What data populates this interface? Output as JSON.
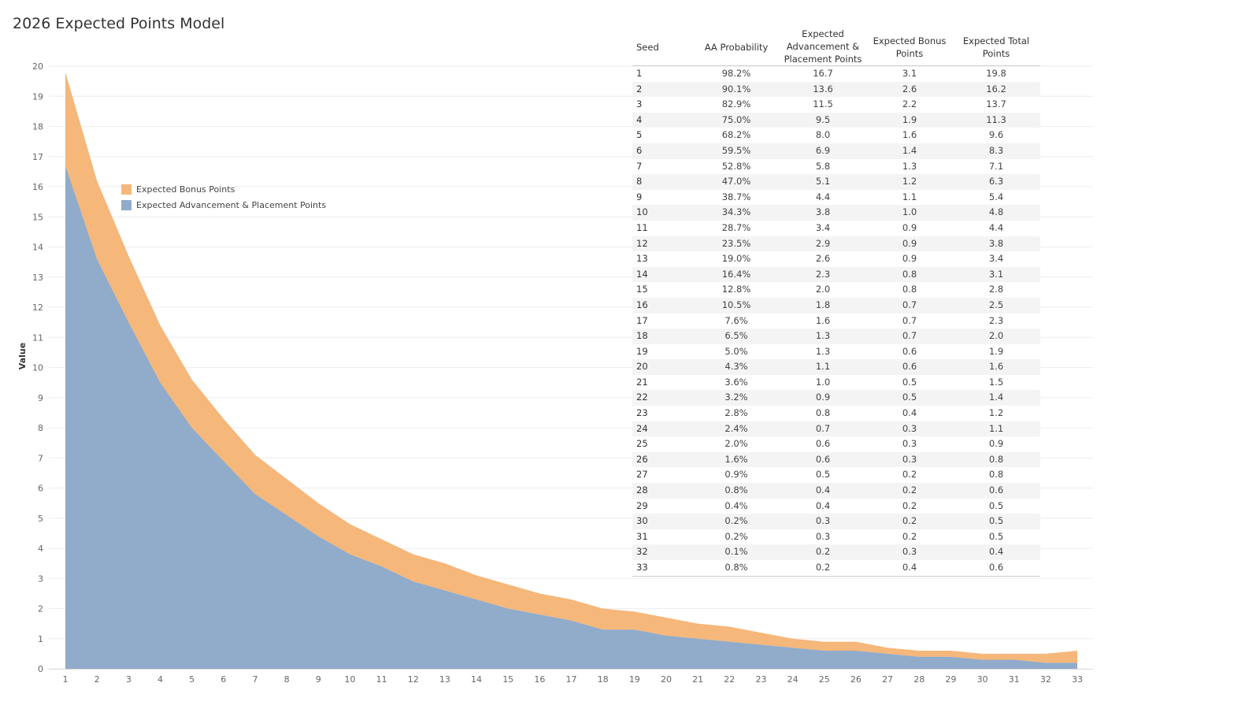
{
  "title": "2026 Expected Points Model",
  "legend": [
    "Expected Bonus Points",
    "Expected Advancement & Placement Points"
  ],
  "colors": {
    "bonus": "#f5b77a",
    "advancement": "#91abca"
  },
  "table": {
    "headers": [
      "Seed",
      "AA Probability",
      "Expected Advancement & Placement Points",
      "Expected Bonus Points",
      "Expected Total Points"
    ],
    "rows": [
      [
        "1",
        "98.2%",
        "16.7",
        "3.1",
        "19.8"
      ],
      [
        "2",
        "90.1%",
        "13.6",
        "2.6",
        "16.2"
      ],
      [
        "3",
        "82.9%",
        "11.5",
        "2.2",
        "13.7"
      ],
      [
        "4",
        "75.0%",
        "9.5",
        "1.9",
        "11.3"
      ],
      [
        "5",
        "68.2%",
        "8.0",
        "1.6",
        "9.6"
      ],
      [
        "6",
        "59.5%",
        "6.9",
        "1.4",
        "8.3"
      ],
      [
        "7",
        "52.8%",
        "5.8",
        "1.3",
        "7.1"
      ],
      [
        "8",
        "47.0%",
        "5.1",
        "1.2",
        "6.3"
      ],
      [
        "9",
        "38.7%",
        "4.4",
        "1.1",
        "5.4"
      ],
      [
        "10",
        "34.3%",
        "3.8",
        "1.0",
        "4.8"
      ],
      [
        "11",
        "28.7%",
        "3.4",
        "0.9",
        "4.4"
      ],
      [
        "12",
        "23.5%",
        "2.9",
        "0.9",
        "3.8"
      ],
      [
        "13",
        "19.0%",
        "2.6",
        "0.9",
        "3.4"
      ],
      [
        "14",
        "16.4%",
        "2.3",
        "0.8",
        "3.1"
      ],
      [
        "15",
        "12.8%",
        "2.0",
        "0.8",
        "2.8"
      ],
      [
        "16",
        "10.5%",
        "1.8",
        "0.7",
        "2.5"
      ],
      [
        "17",
        "7.6%",
        "1.6",
        "0.7",
        "2.3"
      ],
      [
        "18",
        "6.5%",
        "1.3",
        "0.7",
        "2.0"
      ],
      [
        "19",
        "5.0%",
        "1.3",
        "0.6",
        "1.9"
      ],
      [
        "20",
        "4.3%",
        "1.1",
        "0.6",
        "1.6"
      ],
      [
        "21",
        "3.6%",
        "1.0",
        "0.5",
        "1.5"
      ],
      [
        "22",
        "3.2%",
        "0.9",
        "0.5",
        "1.4"
      ],
      [
        "23",
        "2.8%",
        "0.8",
        "0.4",
        "1.2"
      ],
      [
        "24",
        "2.4%",
        "0.7",
        "0.3",
        "1.1"
      ],
      [
        "25",
        "2.0%",
        "0.6",
        "0.3",
        "0.9"
      ],
      [
        "26",
        "1.6%",
        "0.6",
        "0.3",
        "0.8"
      ],
      [
        "27",
        "0.9%",
        "0.5",
        "0.2",
        "0.8"
      ],
      [
        "28",
        "0.8%",
        "0.4",
        "0.2",
        "0.6"
      ],
      [
        "29",
        "0.4%",
        "0.4",
        "0.2",
        "0.5"
      ],
      [
        "30",
        "0.2%",
        "0.3",
        "0.2",
        "0.5"
      ],
      [
        "31",
        "0.2%",
        "0.3",
        "0.2",
        "0.5"
      ],
      [
        "32",
        "0.1%",
        "0.2",
        "0.3",
        "0.4"
      ],
      [
        "33",
        "0.8%",
        "0.2",
        "0.4",
        "0.6"
      ]
    ]
  },
  "chart_data": {
    "type": "area",
    "stacked": true,
    "title": "2026 Expected Points Model",
    "xlabel": "",
    "ylabel": "Value",
    "x": [
      1,
      2,
      3,
      4,
      5,
      6,
      7,
      8,
      9,
      10,
      11,
      12,
      13,
      14,
      15,
      16,
      17,
      18,
      19,
      20,
      21,
      22,
      23,
      24,
      25,
      26,
      27,
      28,
      29,
      30,
      31,
      32,
      33
    ],
    "ylim": [
      0,
      20
    ],
    "yticks": [
      0,
      1,
      2,
      3,
      4,
      5,
      6,
      7,
      8,
      9,
      10,
      11,
      12,
      13,
      14,
      15,
      16,
      17,
      18,
      19,
      20
    ],
    "grid": true,
    "legend_position": "top-left",
    "series": [
      {
        "name": "Expected Advancement & Placement Points",
        "values": [
          16.7,
          13.6,
          11.5,
          9.5,
          8.0,
          6.9,
          5.8,
          5.1,
          4.4,
          3.8,
          3.4,
          2.9,
          2.6,
          2.3,
          2.0,
          1.8,
          1.6,
          1.3,
          1.3,
          1.1,
          1.0,
          0.9,
          0.8,
          0.7,
          0.6,
          0.6,
          0.5,
          0.4,
          0.4,
          0.3,
          0.3,
          0.2,
          0.2
        ]
      },
      {
        "name": "Expected Bonus Points",
        "values": [
          3.1,
          2.6,
          2.2,
          1.9,
          1.6,
          1.4,
          1.3,
          1.2,
          1.1,
          1.0,
          0.9,
          0.9,
          0.9,
          0.8,
          0.8,
          0.7,
          0.7,
          0.7,
          0.6,
          0.6,
          0.5,
          0.5,
          0.4,
          0.3,
          0.3,
          0.3,
          0.2,
          0.2,
          0.2,
          0.2,
          0.2,
          0.3,
          0.4
        ]
      }
    ]
  }
}
